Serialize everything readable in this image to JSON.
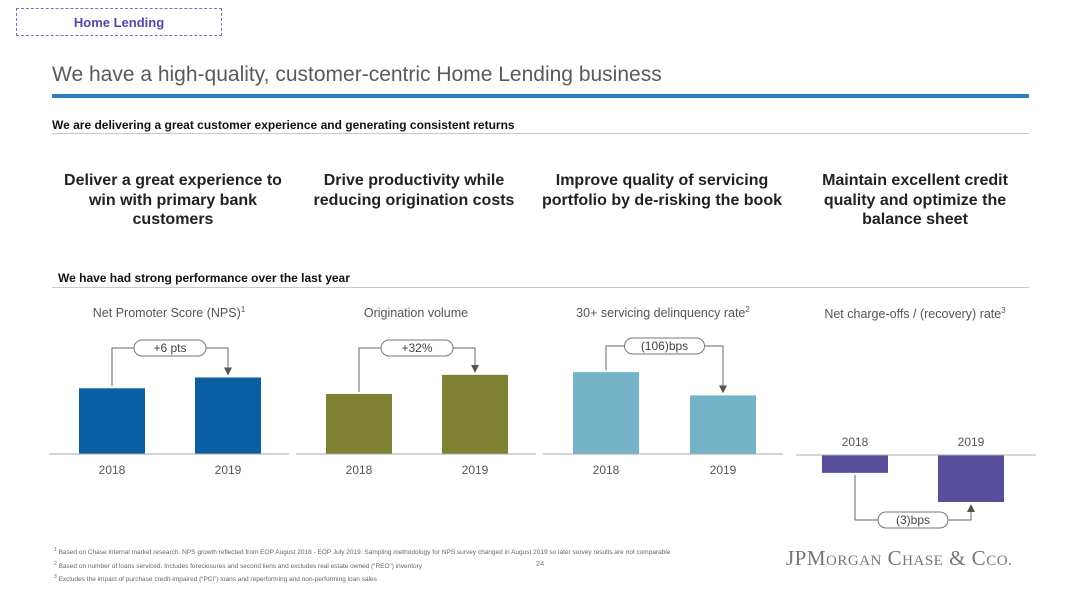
{
  "section_tag": "Home Lending",
  "title": "We have a high-quality, customer-centric Home Lending business",
  "subheading_1": "We are delivering a great customer experience and generating consistent returns",
  "pillars": [
    {
      "text": "Deliver a great experience to win with primary bank customers",
      "color": "#1a63a8"
    },
    {
      "text": "Drive productivity while reducing origination costs",
      "color": "#7a8233"
    },
    {
      "text": "Improve quality of servicing portfolio by de-risking the book",
      "color": "#72b4cd"
    },
    {
      "text": "Maintain excellent credit quality and optimize the balance sheet",
      "color": "#574e9c"
    }
  ],
  "subheading_2": "We have had strong performance over the last year",
  "charts": [
    {
      "title": "Net Promoter Score (NPS)",
      "sup": "1",
      "callout": "+6 pts",
      "color": "#0a5ea2"
    },
    {
      "title": "Origination volume",
      "sup": "",
      "callout": "+32%",
      "color": "#7f8233"
    },
    {
      "title": "30+ servicing delinquency rate",
      "sup": "2",
      "callout": "(106)bps",
      "color": "#74b3c8"
    },
    {
      "title": "Net charge-offs / (recovery) rate",
      "sup": "3",
      "callout": "(3)bps",
      "color": "#574e9c"
    }
  ],
  "chart_data": [
    {
      "type": "bar",
      "categories": [
        "2018",
        "2019"
      ],
      "values": [
        0.73,
        0.85
      ],
      "title": "Net Promoter Score (NPS)",
      "annotation": "+6 pts"
    },
    {
      "type": "bar",
      "categories": [
        "2018",
        "2019"
      ],
      "values": [
        0.66,
        0.87
      ],
      "title": "Origination volume",
      "annotation": "+32%"
    },
    {
      "type": "bar",
      "categories": [
        "2018",
        "2019"
      ],
      "values": [
        0.88,
        0.63
      ],
      "title": "30+ servicing delinquency rate",
      "annotation": "(106)bps"
    },
    {
      "type": "bar",
      "categories": [
        "2018",
        "2019"
      ],
      "values": [
        -0.38,
        -1.0
      ],
      "title": "Net charge-offs / (recovery) rate",
      "annotation": "(3)bps"
    }
  ],
  "footnotes": [
    {
      "num": "1",
      "text": "Based on Chase internal market research. NPS growth reflected from EOP August 2018 - EOP July 2019. Sampling methodology for NPS survey changed in August 2019 so later survey results are not comparable"
    },
    {
      "num": "2",
      "text": "Based on number of loans serviced. Includes foreclosures and second liens and excludes real estate owned (“REO”) inventory"
    },
    {
      "num": "3",
      "text": "Excludes the impact of purchase credit-impaired (“PCI”) loans and reperforming and non-performing loan sales"
    }
  ],
  "page_number": "24",
  "logo": {
    "jp": "JP",
    "m": "M",
    "organ": "ORGAN",
    "c": "C",
    "hase": "HASE",
    "amp": " & ",
    "co": "CO."
  }
}
